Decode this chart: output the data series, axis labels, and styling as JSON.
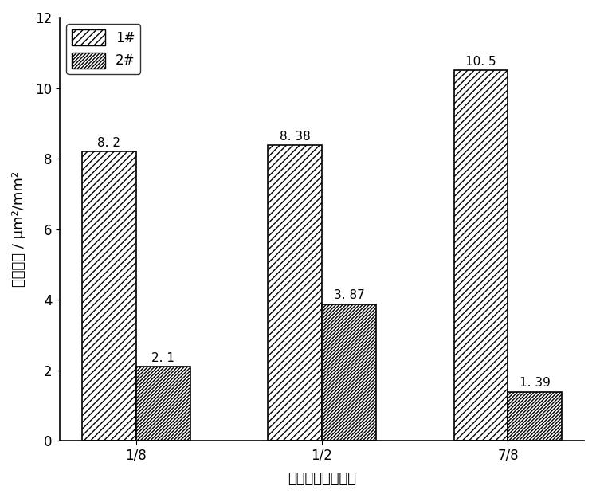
{
  "categories": [
    "1/8",
    "1/2",
    "7/8"
  ],
  "series1_label": "1#",
  "series2_label": "2#",
  "series1_values": [
    8.2,
    8.38,
    10.5
  ],
  "series2_values": [
    2.1,
    3.87,
    1.39
  ],
  "series1_annotations": [
    "8. 2",
    "8. 38",
    "10. 5"
  ],
  "series2_annotations": [
    "2. 1",
    "3. 87",
    "1. 39"
  ],
  "ylabel": "面积密度 / μm²/mm²",
  "xlabel": "铸坤厚度方向位置",
  "ylim": [
    0,
    12
  ],
  "yticks": [
    0,
    2,
    4,
    6,
    8,
    10,
    12
  ],
  "bar_width": 0.32,
  "x_positions": [
    0.0,
    1.1,
    2.2
  ],
  "bar1_facecolor": "#ffffff",
  "bar1_edgecolor": "#000000",
  "bar2_facecolor": "#ffffff",
  "bar2_edgecolor": "#000000",
  "hatch1": "////",
  "hatch2": "////////",
  "annotation_fontsize": 11,
  "label_fontsize": 13,
  "tick_fontsize": 12,
  "legend_fontsize": 12,
  "background_color": "#ffffff",
  "xlim": [
    -0.45,
    2.65
  ]
}
